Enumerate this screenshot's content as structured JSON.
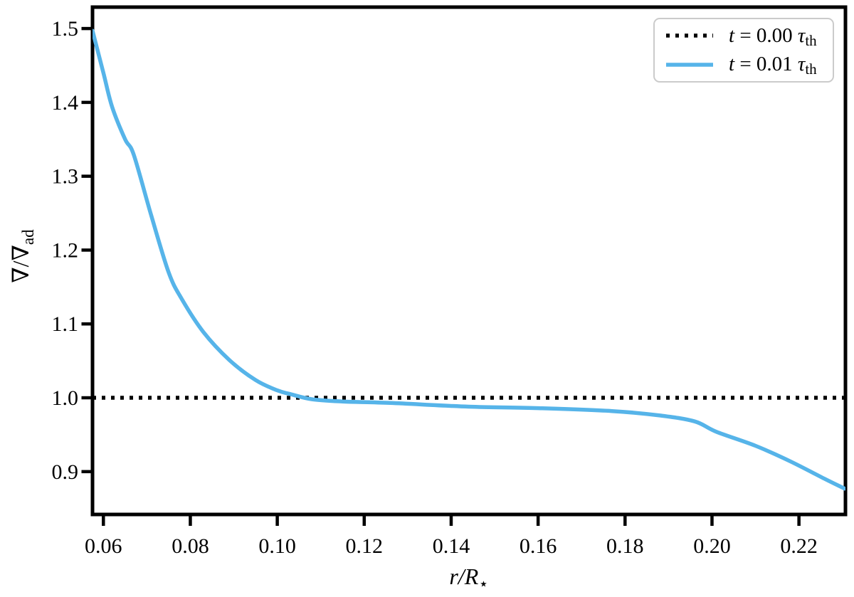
{
  "figure": {
    "background": "#ffffff",
    "xlabel": {
      "main": "r/R",
      "sub": "⋆"
    },
    "ylabel": {
      "main": "∇/∇",
      "sub": "ad"
    },
    "legend": {
      "entries": [
        {
          "var": "t",
          "mid": " = 0.00 ",
          "tau": "τ",
          "sub": "th"
        },
        {
          "var": "t",
          "mid": " = 0.01 ",
          "tau": "τ",
          "sub": "th"
        }
      ]
    }
  },
  "chart_data": {
    "type": "line",
    "title": "",
    "xlabel": "r/R⋆",
    "ylabel": "∇/∇ad",
    "xlim": [
      0.0575,
      0.2307
    ],
    "ylim": [
      0.842,
      1.529
    ],
    "x_ticks": [
      "0.06",
      "0.08",
      "0.10",
      "0.12",
      "0.14",
      "0.16",
      "0.18",
      "0.20",
      "0.22"
    ],
    "y_ticks": [
      "0.9",
      "1.0",
      "1.1",
      "1.2",
      "1.3",
      "1.4",
      "1.5"
    ],
    "grid": false,
    "legend_position": "upper right",
    "series": [
      {
        "name": "t = 0.00 τ_th",
        "type": "hline",
        "y": 1.0,
        "color": "#000000",
        "linestyle": "dotted"
      },
      {
        "name": "t = 0.01 τ_th",
        "type": "line",
        "color": "#56B4E9",
        "linestyle": "solid",
        "x": [
          0.0575,
          0.06,
          0.062,
          0.065,
          0.067,
          0.071,
          0.075,
          0.078,
          0.083,
          0.089,
          0.095,
          0.1,
          0.103,
          0.108,
          0.115,
          0.126,
          0.144,
          0.16,
          0.177,
          0.188,
          0.196,
          0.201,
          0.21,
          0.218,
          0.226,
          0.2305
        ],
        "y": [
          1.497,
          1.44,
          1.394,
          1.35,
          1.329,
          1.247,
          1.17,
          1.134,
          1.089,
          1.051,
          1.024,
          1.01,
          1.005,
          0.998,
          0.995,
          0.993,
          0.988,
          0.986,
          0.982,
          0.976,
          0.968,
          0.954,
          0.935,
          0.914,
          0.89,
          0.877
        ]
      }
    ]
  }
}
